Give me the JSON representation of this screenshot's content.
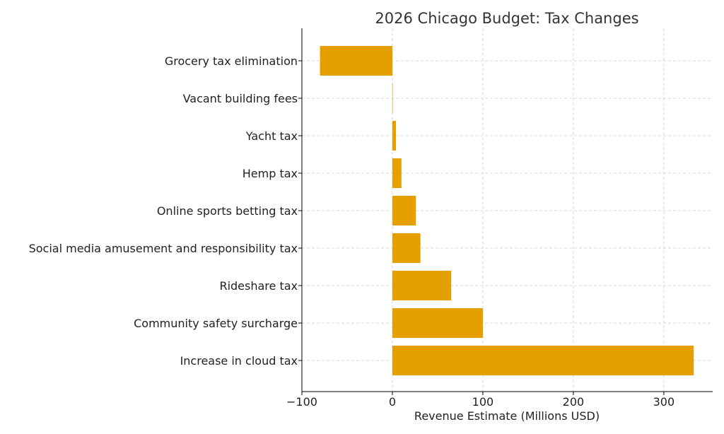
{
  "chart_data": {
    "type": "bar",
    "orientation": "horizontal",
    "title": "2026 Chicago Budget: Tax Changes",
    "xlabel": "Revenue Estimate (Millions USD)",
    "ylabel": "",
    "categories": [
      "Grocery tax elimination",
      "Vacant building fees",
      "Yacht tax",
      "Hemp tax",
      "Online sports betting tax",
      "Social media amusement and responsibility tax",
      "Rideshare tax",
      "Community safety surcharge",
      "Increase in cloud tax"
    ],
    "values": [
      -80,
      0.3,
      4,
      10,
      26,
      31,
      65,
      100,
      333
    ],
    "xlim": [
      -100,
      354
    ],
    "xticks": [
      -100,
      0,
      100,
      200,
      300
    ],
    "xtick_labels": [
      "−100",
      "0",
      "100",
      "200",
      "300"
    ],
    "grid": true,
    "bar_color": "#E69F00"
  }
}
